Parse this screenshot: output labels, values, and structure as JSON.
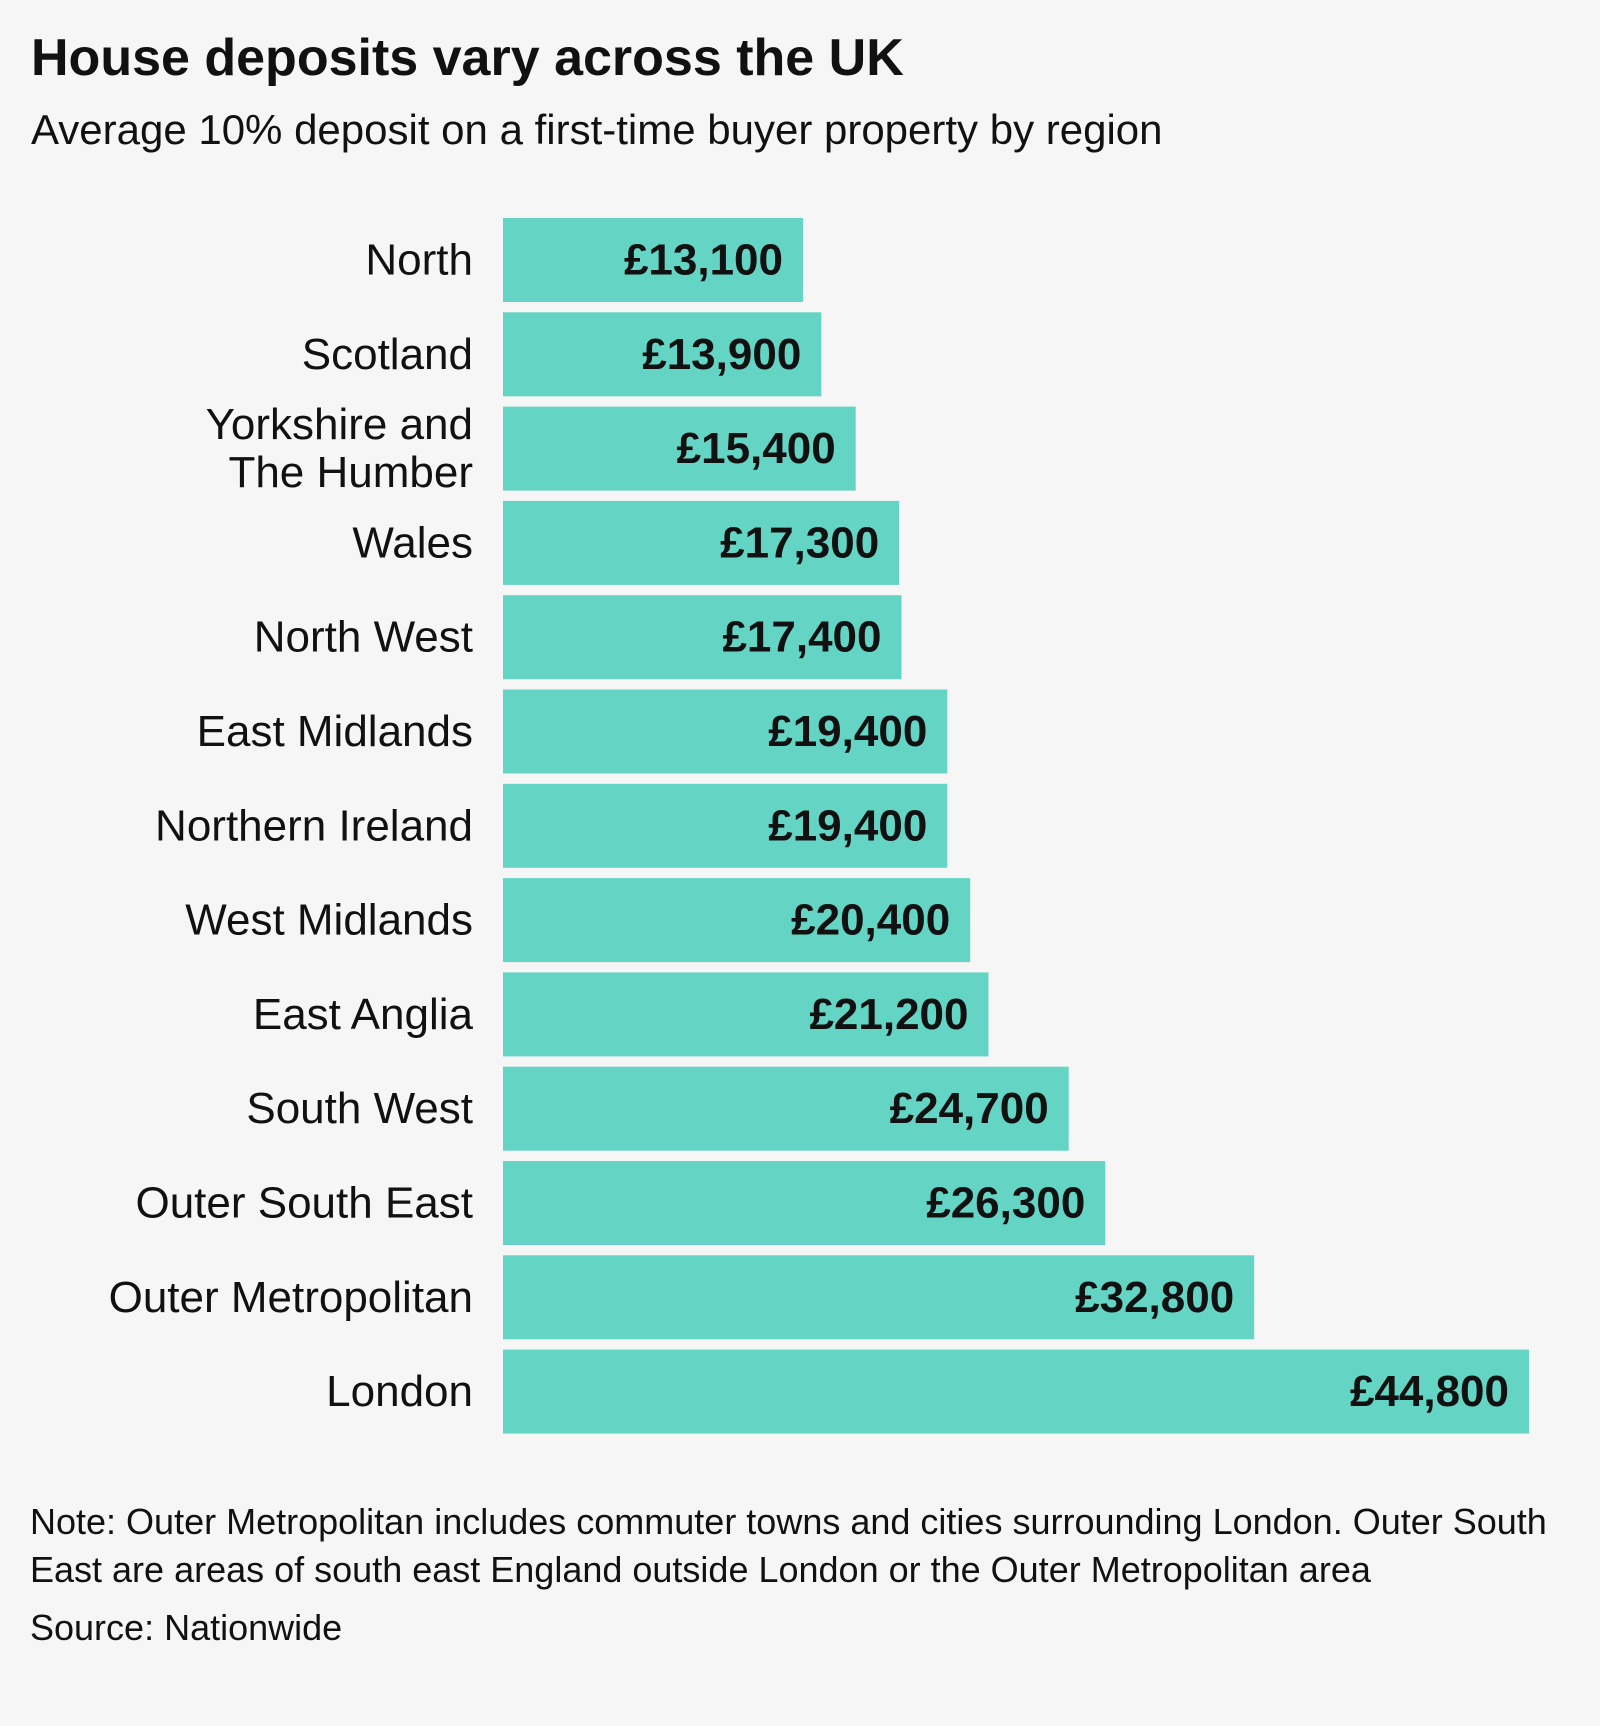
{
  "header": {
    "title": "House deposits vary across the UK",
    "subtitle": "Average 10% deposit on a first-time buyer property by region"
  },
  "chart_data": {
    "type": "bar",
    "orientation": "horizontal",
    "categories": [
      "North",
      "Scotland",
      "Yorkshire and The Humber",
      "Wales",
      "North West",
      "East Midlands",
      "Northern Ireland",
      "West Midlands",
      "East Anglia",
      "South West",
      "Outer South East",
      "Outer Metropolitan",
      "London"
    ],
    "category_lines": [
      [
        "North"
      ],
      [
        "Scotland"
      ],
      [
        "Yorkshire and",
        "The Humber"
      ],
      [
        "Wales"
      ],
      [
        "North West"
      ],
      [
        "East Midlands"
      ],
      [
        "Northern Ireland"
      ],
      [
        "West Midlands"
      ],
      [
        "East Anglia"
      ],
      [
        "South West"
      ],
      [
        "Outer South East"
      ],
      [
        "Outer Metropolitan"
      ],
      [
        "London"
      ]
    ],
    "values": [
      13100,
      13900,
      15400,
      17300,
      17400,
      19400,
      19400,
      20400,
      21200,
      24700,
      26300,
      32800,
      44800
    ],
    "data_labels": [
      "£13,100",
      "£13,900",
      "£15,400",
      "£17,300",
      "£17,400",
      "£19,400",
      "£19,400",
      "£20,400",
      "£21,200",
      "£24,700",
      "£26,300",
      "£32,800",
      "£44,800"
    ],
    "xlim": [
      0,
      44800
    ],
    "bar_color": "#64d5c4",
    "grid": false,
    "legend": "none"
  },
  "footer": {
    "note": "Note: Outer Metropolitan includes commuter towns and cities surrounding London. Outer South East are areas of south east England outside London or the Outer Metropolitan area",
    "source": "Source: Nationwide"
  }
}
